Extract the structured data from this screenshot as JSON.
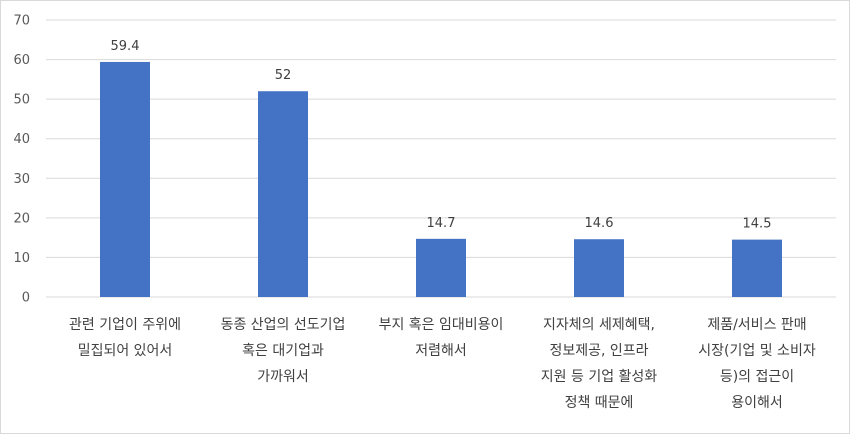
{
  "chart_data": {
    "type": "bar",
    "categories": [
      [
        "관련 기업이 주위에",
        "밀집되어 있어서"
      ],
      [
        "동종 산업의 선도기업",
        "혹은 대기업과",
        "가까워서"
      ],
      [
        "부지 혹은 임대비용이",
        "저렴해서"
      ],
      [
        "지자체의 세제혜택,",
        "정보제공, 인프라",
        "지원 등 기업 활성화",
        "정책 때문에"
      ],
      [
        "제품/서비스 판매",
        "시장(기업 및 소비자",
        "등)의 접근이",
        "용이해서"
      ]
    ],
    "values": [
      59.4,
      52,
      14.7,
      14.6,
      14.5
    ],
    "value_labels": [
      "59.4",
      "52",
      "14.7",
      "14.6",
      "14.5"
    ],
    "ylim": [
      0,
      70
    ],
    "yticks": [
      "0",
      "10",
      "20",
      "30",
      "40",
      "50",
      "60",
      "70"
    ],
    "grid": true,
    "bar_color": "#4472c4",
    "grid_color": "#d9d9d9"
  }
}
